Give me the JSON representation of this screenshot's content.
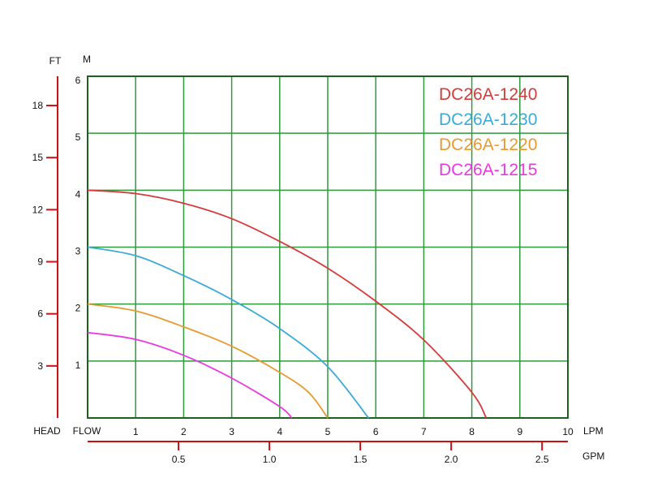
{
  "chart_data": {
    "type": "line",
    "title": "",
    "x_label": "FLOW",
    "y_label": "HEAD",
    "x_unit": "LPM",
    "x2_unit": "GPM",
    "y_unit": "M",
    "y2_unit": "FT",
    "xlim": [
      0,
      10
    ],
    "ylim": [
      0,
      6
    ],
    "x_ticks": [
      1,
      2,
      3,
      4,
      5,
      6,
      7,
      8,
      9,
      10
    ],
    "y_ticks": [
      1,
      2,
      3,
      4,
      5,
      6
    ],
    "ft_ticks": [
      3,
      6,
      9,
      12,
      15,
      18
    ],
    "gpm_ticks": [
      "0.5",
      "1.0",
      "1.5",
      "2.0",
      "2.5"
    ],
    "grid": true,
    "legend_position": "top-right",
    "colors": {
      "grid": "#2e9a3c",
      "frame": "#1f5f1f",
      "secondary_axis": "#cc1111",
      "text": "#111111"
    },
    "series": [
      {
        "name": "DC26A-1240",
        "color": "#d63a3a",
        "points": [
          [
            0,
            4.0
          ],
          [
            1,
            3.94
          ],
          [
            2,
            3.77
          ],
          [
            3,
            3.5
          ],
          [
            4,
            3.1
          ],
          [
            5,
            2.63
          ],
          [
            6,
            2.05
          ],
          [
            7,
            1.37
          ],
          [
            8,
            0.45
          ],
          [
            8.3,
            0.0
          ]
        ]
      },
      {
        "name": "DC26A-1230",
        "color": "#3aaad8",
        "points": [
          [
            0,
            3.0
          ],
          [
            1,
            2.85
          ],
          [
            2,
            2.5
          ],
          [
            3,
            2.08
          ],
          [
            4,
            1.57
          ],
          [
            5,
            0.9
          ],
          [
            5.85,
            0.0
          ]
        ]
      },
      {
        "name": "DC26A-1220",
        "color": "#e89a2e",
        "points": [
          [
            0,
            2.0
          ],
          [
            1,
            1.88
          ],
          [
            2,
            1.6
          ],
          [
            3,
            1.26
          ],
          [
            4,
            0.8
          ],
          [
            4.6,
            0.45
          ],
          [
            5.0,
            0.0
          ]
        ]
      },
      {
        "name": "DC26A-1215",
        "color": "#e83ae0",
        "points": [
          [
            0,
            1.5
          ],
          [
            1,
            1.38
          ],
          [
            2,
            1.1
          ],
          [
            3,
            0.7
          ],
          [
            4,
            0.2
          ],
          [
            4.25,
            0.0
          ]
        ]
      }
    ]
  }
}
